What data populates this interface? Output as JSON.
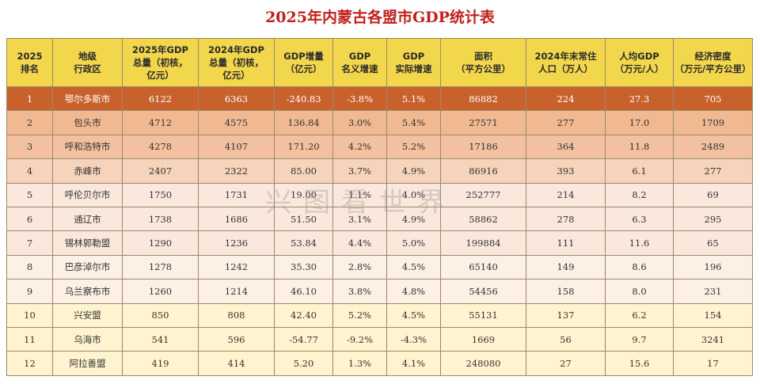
{
  "title": "2025年内蒙古各盟市GDP统计表",
  "watermark": "兴图看世界",
  "headers": [
    "2025\n排名",
    "地级\n行政区",
    "2025年GDP\n总量（初核，\n亿元）",
    "2024年GDP\n总量（初核，\n亿元）",
    "GDP增量\n（亿元）",
    "GDP\n名义增速",
    "GDP\n实际增速",
    "面积\n（平方公里）",
    "2024年末常住\n人口（万人）",
    "人均GDP\n（万元/人）",
    "经济密度\n（万元/平方公里）"
  ],
  "rows": [
    [
      "1",
      "鄂尔多斯市",
      "6122",
      "6363",
      "-240.83",
      "-3.8%",
      "5.1%",
      "86882",
      "224",
      "27.3",
      "705"
    ],
    [
      "2",
      "包头市",
      "4712",
      "4575",
      "136.84",
      "3.0%",
      "5.4%",
      "27571",
      "277",
      "17.0",
      "1709"
    ],
    [
      "3",
      "呼和浩特市",
      "4278",
      "4107",
      "171.20",
      "4.2%",
      "5.2%",
      "17186",
      "364",
      "11.8",
      "2489"
    ],
    [
      "4",
      "赤峰市",
      "2407",
      "2322",
      "85.00",
      "3.7%",
      "4.9%",
      "86916",
      "393",
      "6.1",
      "277"
    ],
    [
      "5",
      "呼伦贝尔市",
      "1750",
      "1731",
      "19.00",
      "1.1%",
      "4.0%",
      "252777",
      "214",
      "8.2",
      "69"
    ],
    [
      "6",
      "通辽市",
      "1738",
      "1686",
      "51.50",
      "3.1%",
      "4.9%",
      "58862",
      "278",
      "6.3",
      "295"
    ],
    [
      "7",
      "锡林郭勒盟",
      "1290",
      "1236",
      "53.84",
      "4.4%",
      "5.0%",
      "199884",
      "111",
      "11.6",
      "65"
    ],
    [
      "8",
      "巴彦淖尔市",
      "1278",
      "1242",
      "35.30",
      "2.8%",
      "4.5%",
      "65140",
      "149",
      "8.6",
      "196"
    ],
    [
      "9",
      "乌兰察布市",
      "1260",
      "1214",
      "46.10",
      "3.8%",
      "4.8%",
      "54456",
      "158",
      "8.0",
      "231"
    ],
    [
      "10",
      "兴安盟",
      "850",
      "808",
      "42.40",
      "5.2%",
      "4.5%",
      "55131",
      "137",
      "6.2",
      "154"
    ],
    [
      "11",
      "乌海市",
      "541",
      "596",
      "-54.77",
      "-9.2%",
      "-4.3%",
      "1669",
      "56",
      "9.7",
      "3241"
    ],
    [
      "12",
      "阿拉善盟",
      "419",
      "414",
      "5.20",
      "1.3%",
      "4.1%",
      "248080",
      "27",
      "15.6",
      "17"
    ]
  ]
}
